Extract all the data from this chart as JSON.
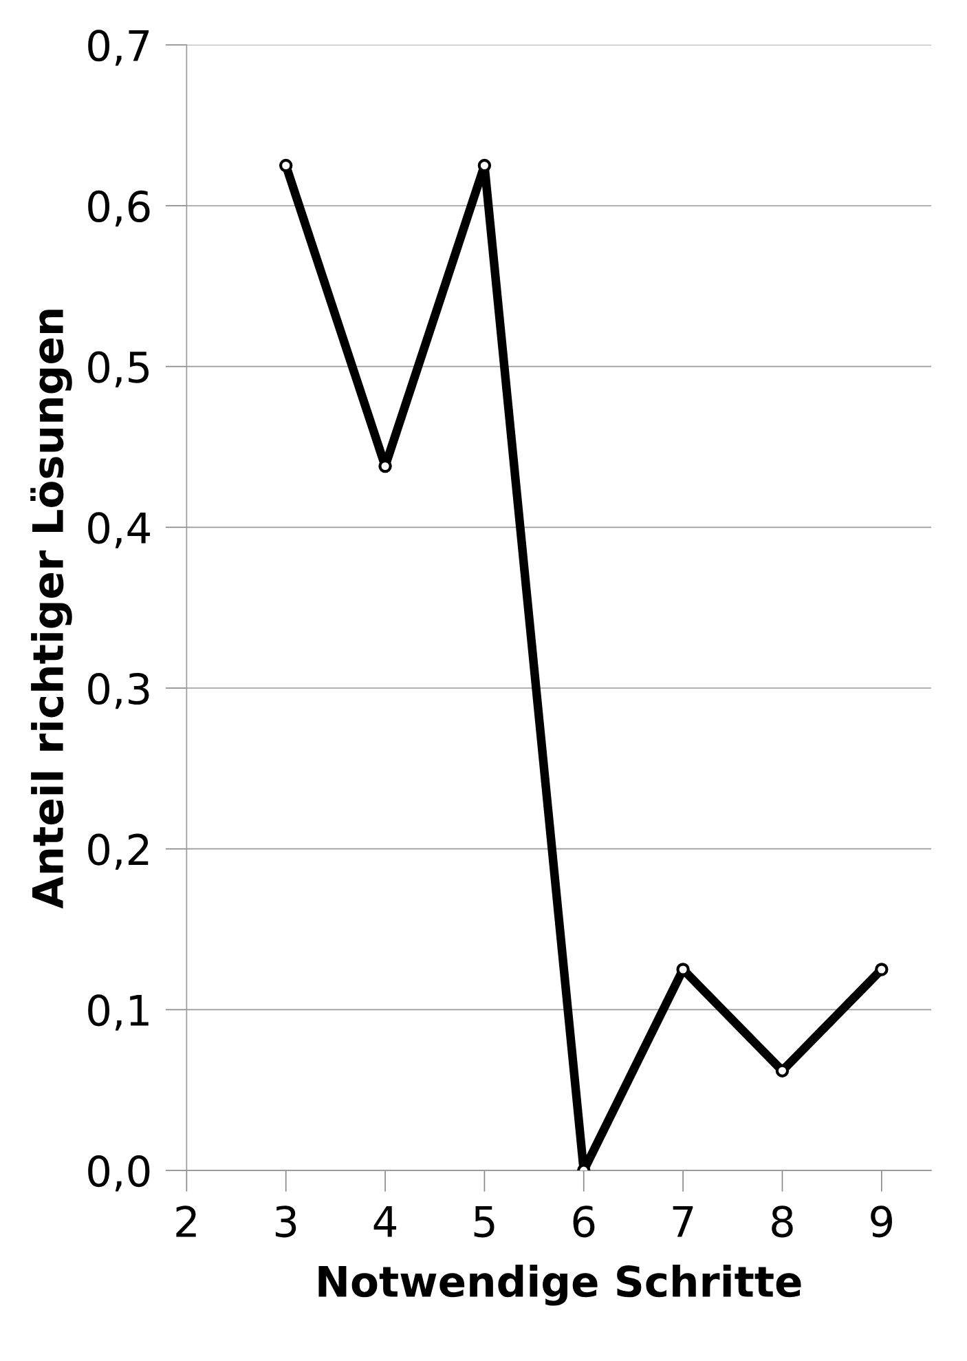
{
  "chart_data": {
    "type": "line",
    "xlabel": "Notwendige Schritte",
    "ylabel": "Anteil richtiger Lösungen",
    "x": [
      3,
      4,
      5,
      6,
      7,
      8,
      9
    ],
    "series": [
      {
        "color": "#000000",
        "values": [
          0.625,
          0.438,
          0.625,
          0,
          0.125,
          0.062,
          0.125
        ]
      }
    ],
    "xlim": [
      2,
      9.5
    ],
    "xticks": [
      2,
      3,
      4,
      5,
      6,
      7,
      8,
      9
    ],
    "ylim": [
      0,
      0.7
    ],
    "yticks": [
      {
        "value": 0,
        "label": "0,0"
      },
      {
        "value": 0.1,
        "label": "0,1"
      },
      {
        "value": 0.2,
        "label": "0,2"
      },
      {
        "value": 0.3,
        "label": "0,3"
      },
      {
        "value": 0.4,
        "label": "0,4"
      },
      {
        "value": 0.5,
        "label": "0,5"
      },
      {
        "value": 0.6,
        "label": "0,6"
      },
      {
        "value": 0.7,
        "label": "0,7"
      }
    ],
    "grid": "y",
    "marker": "circle",
    "line_style": "solid"
  }
}
